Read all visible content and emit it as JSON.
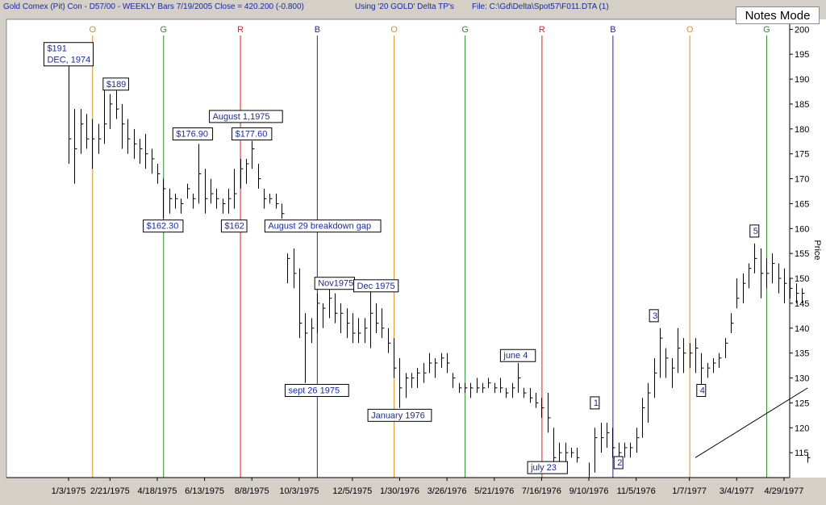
{
  "header": {
    "title": "Gold Comex (Pit) Con - D57/00 - WEEKLY Bars 7/19/2005 Close = 420.200 (-0.800)",
    "cycle_info": "Using '20 GOLD' Delta TP's",
    "file": "File: C:\\Gd\\Delta\\Spot57\\F011.DTA (1)"
  },
  "notes_mode_label": "Notes Mode",
  "colors": {
    "O": "#e08a1e",
    "G": "#2a8a2a",
    "R": "#e02020",
    "B": "#2020c0",
    "annotation": "#1a2a9a",
    "background": "#ffffff"
  },
  "chart_data": {
    "type": "ohlc-bar",
    "title": "Gold Comex (Pit) Con - D57/00 - WEEKLY Bars",
    "xlabel": "",
    "ylabel": "Price",
    "ylim": [
      110,
      202
    ],
    "y_ticks": [
      115,
      120,
      125,
      130,
      135,
      140,
      145,
      150,
      155,
      160,
      165,
      170,
      175,
      180,
      185,
      190,
      195,
      200
    ],
    "x_ticks": [
      "1/3/1975",
      "2/21/1975",
      "4/18/1975",
      "6/13/1975",
      "8/8/1975",
      "10/3/1975",
      "12/5/1975",
      "1/30/1976",
      "3/26/1976",
      "5/21/1976",
      "7/16/1976",
      "9/10/1976",
      "11/5/1976",
      "1/7/1977",
      "3/4/1977",
      "4/29/1977"
    ],
    "x_tick_index": [
      0,
      7,
      15,
      23,
      31,
      39,
      48,
      56,
      64,
      72,
      80,
      88,
      96,
      105,
      113,
      121
    ],
    "cycle_lines": [
      {
        "label": "O",
        "index": 4
      },
      {
        "label": "G",
        "index": 16
      },
      {
        "label": "R",
        "index": 29
      },
      {
        "label": "B",
        "index": 42
      },
      {
        "label": "O",
        "index": 55
      },
      {
        "label": "G",
        "index": 67
      },
      {
        "label": "R",
        "index": 80
      },
      {
        "label": "B",
        "index": 92
      },
      {
        "label": "O",
        "index": 105
      },
      {
        "label": "G",
        "index": 118
      }
    ],
    "bars": [
      [
        197,
        173,
        178
      ],
      [
        184,
        169,
        176
      ],
      [
        184,
        175,
        181
      ],
      [
        183,
        176,
        178
      ],
      [
        182,
        172,
        178
      ],
      [
        181,
        175,
        178
      ],
      [
        188,
        177,
        181
      ],
      [
        187,
        180,
        185
      ],
      [
        189,
        182,
        184
      ],
      [
        185,
        176,
        181
      ],
      [
        182,
        175,
        178
      ],
      [
        180,
        174,
        177
      ],
      [
        178,
        173,
        176
      ],
      [
        179,
        172,
        175
      ],
      [
        176,
        171,
        174
      ],
      [
        173,
        169,
        171
      ],
      [
        170,
        162,
        168
      ],
      [
        168,
        163,
        166
      ],
      [
        167,
        164,
        166
      ],
      [
        166,
        163,
        165
      ],
      [
        169,
        166,
        168
      ],
      [
        167,
        164,
        166
      ],
      [
        177,
        165,
        171
      ],
      [
        172,
        163,
        166
      ],
      [
        170,
        165,
        167
      ],
      [
        168,
        164,
        166
      ],
      [
        166,
        163,
        165
      ],
      [
        168,
        163,
        166
      ],
      [
        172,
        164,
        167
      ],
      [
        174,
        168,
        172
      ],
      [
        174,
        169,
        173
      ],
      [
        177.6,
        172,
        176
      ],
      [
        173,
        168,
        170
      ],
      [
        168,
        164,
        166
      ],
      [
        167,
        165,
        166
      ],
      [
        167,
        164,
        165
      ],
      [
        165,
        162,
        163
      ],
      [
        155,
        149,
        154
      ],
      [
        156,
        148,
        151
      ],
      [
        152,
        138,
        141
      ],
      [
        143,
        129,
        139
      ],
      [
        142,
        137,
        140
      ],
      [
        147,
        139,
        145
      ],
      [
        145,
        140,
        144
      ],
      [
        148,
        142,
        146
      ],
      [
        147,
        141,
        143
      ],
      [
        145,
        139,
        143
      ],
      [
        144,
        138,
        141
      ],
      [
        143,
        137,
        139
      ],
      [
        142,
        137,
        139
      ],
      [
        142,
        137,
        140
      ],
      [
        148,
        136,
        143
      ],
      [
        145,
        139,
        141
      ],
      [
        144,
        138,
        140
      ],
      [
        140,
        135,
        137
      ],
      [
        138,
        130,
        132
      ],
      [
        134,
        124,
        128
      ],
      [
        131,
        126,
        130
      ],
      [
        131,
        128,
        130
      ],
      [
        132,
        128,
        131
      ],
      [
        133,
        129,
        131
      ],
      [
        135,
        131,
        133
      ],
      [
        134,
        130,
        133
      ],
      [
        135,
        132,
        134
      ],
      [
        135,
        131,
        133
      ],
      [
        131,
        128,
        130
      ],
      [
        129,
        127,
        128
      ],
      [
        129,
        127,
        128
      ],
      [
        129,
        126,
        128
      ],
      [
        130,
        127,
        128
      ],
      [
        129,
        127,
        128
      ],
      [
        130,
        128,
        129
      ],
      [
        129,
        127,
        128
      ],
      [
        130,
        127,
        128
      ],
      [
        128,
        126,
        127
      ],
      [
        129,
        126,
        128
      ],
      [
        133,
        127,
        130
      ],
      [
        128,
        126,
        127
      ],
      [
        128,
        125,
        126
      ],
      [
        127,
        124,
        125
      ],
      [
        126,
        122,
        124
      ],
      [
        127,
        119,
        122
      ],
      [
        120,
        111,
        114
      ],
      [
        117,
        112,
        115
      ],
      [
        117,
        113,
        115
      ],
      [
        116,
        114,
        115
      ],
      [
        116,
        113,
        114
      ],
      [
        110,
        104,
        106
      ],
      [
        113,
        106,
        109
      ],
      [
        120,
        111,
        118
      ],
      [
        121,
        115,
        118
      ],
      [
        121,
        116,
        119
      ],
      [
        120,
        114,
        116
      ],
      [
        117,
        113,
        115
      ],
      [
        117,
        114,
        116
      ],
      [
        117,
        114,
        116
      ],
      [
        120,
        115,
        118
      ],
      [
        126,
        118,
        124
      ],
      [
        129,
        121,
        127
      ],
      [
        134,
        126,
        131
      ],
      [
        140,
        130,
        138
      ],
      [
        136,
        130,
        134
      ],
      [
        134,
        128,
        132
      ],
      [
        140,
        131,
        136
      ],
      [
        138,
        131,
        135
      ],
      [
        137,
        132,
        135
      ],
      [
        138,
        131,
        136
      ],
      [
        135,
        127,
        132
      ],
      [
        133,
        130,
        132
      ],
      [
        134,
        131,
        133
      ],
      [
        135,
        132,
        134
      ],
      [
        138,
        134,
        137
      ],
      [
        143,
        139,
        141
      ],
      [
        150,
        144,
        146
      ],
      [
        151,
        145,
        149
      ],
      [
        153,
        148,
        152
      ],
      [
        157,
        151,
        154
      ],
      [
        156,
        146,
        151
      ],
      [
        154,
        148,
        151
      ],
      [
        155,
        149,
        153
      ],
      [
        153,
        147,
        150
      ],
      [
        152,
        145,
        149
      ],
      [
        150,
        146,
        148
      ],
      [
        149,
        145,
        147
      ],
      [
        148,
        145,
        147
      ],
      [
        115,
        113,
        114
      ]
    ],
    "annotations": [
      {
        "text": "$191",
        "index": 0,
        "price": 195,
        "two_line": "DEC, 1974"
      },
      {
        "text": "$189",
        "index": 8,
        "price": 189
      },
      {
        "text": "$176.90",
        "index": 21,
        "price": 179
      },
      {
        "text": "August  1,1975",
        "index": 30,
        "price": 182.5
      },
      {
        "text": "$177.60",
        "index": 31,
        "price": 179
      },
      {
        "text": "$162.30",
        "index": 16,
        "price": 160.5
      },
      {
        "text": "$162",
        "index": 28,
        "price": 160.5
      },
      {
        "text": "August 29 breakdown gap",
        "index": 43,
        "price": 160.5
      },
      {
        "text": "Nov1975",
        "index": 45,
        "price": 149
      },
      {
        "text": "Dec 1975",
        "index": 52,
        "price": 148.5
      },
      {
        "text": "sept 26 1975",
        "index": 42,
        "price": 127.5
      },
      {
        "text": "January 1976",
        "index": 56,
        "price": 122.5
      },
      {
        "text": "june 4",
        "index": 76,
        "price": 134.5
      },
      {
        "text": "july 23",
        "index": 81,
        "price": 112
      },
      {
        "text": "1",
        "index": 89,
        "price": 125
      },
      {
        "text": "2",
        "index": 93,
        "price": 113
      },
      {
        "text": "3",
        "index": 99,
        "price": 142.5
      },
      {
        "text": "4",
        "index": 107,
        "price": 127.5
      },
      {
        "text": "5",
        "index": 116,
        "price": 159.5
      }
    ],
    "trendline": {
      "from": {
        "index": 106,
        "price": 114
      },
      "to": {
        "index": 125,
        "price": 128
      }
    }
  }
}
